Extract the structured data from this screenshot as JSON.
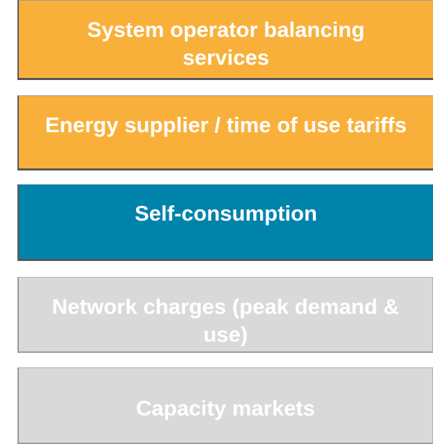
{
  "boxes": [
    {
      "label": "System operator balancing services",
      "style": "orange"
    },
    {
      "label": "Energy supplier / time of use tariffs",
      "style": "orange"
    },
    {
      "label": "Self-consumption",
      "style": "blue"
    },
    {
      "label": "Network charges (peak demand & use)",
      "style": "gray"
    },
    {
      "label": "Capacity markets",
      "style": "gray"
    }
  ]
}
